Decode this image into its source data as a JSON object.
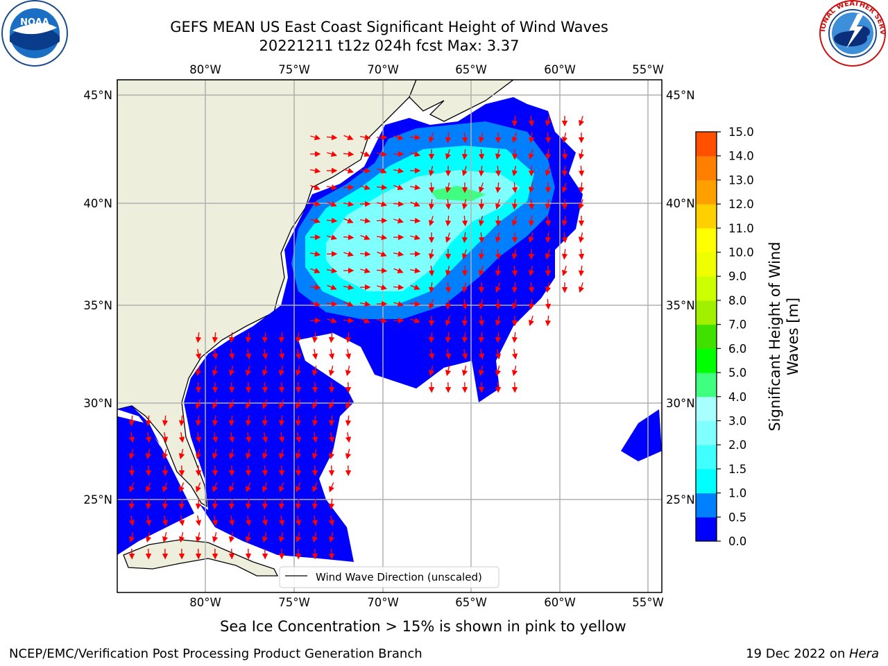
{
  "header": {
    "title_line1": "GEFS MEAN US East Coast Significant Height of Wind Waves",
    "title_line2": "20221211 t12z 024h fcst   Max: 3.37"
  },
  "logos": {
    "left": "NOAA",
    "left_ring_text": "NATIONAL OCEANIC AND ATMOSPHERIC ADMINISTRATION · U.S. DEPARTMENT OF COMMERCE",
    "right_ring_text": "NATIONAL WEATHER SERVICE"
  },
  "map": {
    "lon_labels": [
      "80°W",
      "75°W",
      "70°W",
      "65°W",
      "60°W",
      "55°W"
    ],
    "lat_labels": [
      "45°N",
      "40°N",
      "35°N",
      "30°N",
      "25°N"
    ],
    "lat_labels_right": [
      "45°N",
      "40°N",
      "35°N",
      "30°N",
      "25°N"
    ],
    "legend_label": "Wind Wave Direction (unscaled)",
    "max_value": 3.37,
    "colors": {
      "land": "#eeeedd",
      "grid": "#b0b0b0",
      "arrow": "#ff0000"
    }
  },
  "colorbar": {
    "title": "Significant Height of Wind Waves [m]",
    "ticks": [
      "0.0",
      "0.5",
      "1.0",
      "1.5",
      "2.0",
      "3.0",
      "4.0",
      "5.0",
      "6.0",
      "7.0",
      "8.0",
      "9.0",
      "10.0",
      "11.0",
      "12.0",
      "13.0",
      "14.0",
      "15.0"
    ],
    "colors": [
      "#0000ff",
      "#0080ff",
      "#00ffff",
      "#40ffff",
      "#80ffff",
      "#a8ffff",
      "#40ff80",
      "#00ff00",
      "#40e000",
      "#a0f000",
      "#ccff00",
      "#f0ff00",
      "#ffff00",
      "#ffd000",
      "#ffa000",
      "#ff8000",
      "#ff5000",
      "#ff2000",
      "#ff0000"
    ]
  },
  "footer": {
    "note": "Sea Ice Concentration > 15% is shown in pink to yellow",
    "left": "NCEP/EMC/Verification Post Processing Product Generation Branch",
    "right_date": "19 Dec 2022 on ",
    "right_host": "Hera"
  }
}
